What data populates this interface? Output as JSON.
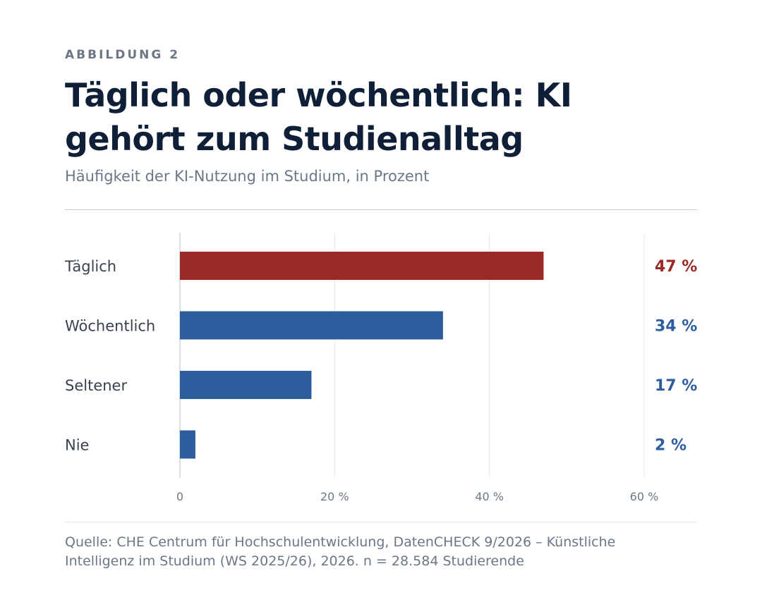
{
  "header": {
    "eyebrow": "ABBILDUNG 2",
    "title": "Täglich oder wöchentlich: KI gehört zum Studienalltag",
    "subtitle": "Häufigkeit der KI-Nutzung im Studium, in Prozent"
  },
  "footer": {
    "source": "Quelle: CHE Centrum für Hochschulentwicklung, DatenCHECK 9/2026 – Künstliche Intelligenz im Studium (WS 2025/26), 2026. n = 28.584 Studierende"
  },
  "colors": {
    "highlight": "#9b2a27",
    "bar": "#2e5d9e",
    "label": "#3a4250",
    "tick": "#6b7787",
    "grid": "#e6e8eb",
    "axis": "#b8bcc3"
  },
  "chart_data": {
    "type": "bar",
    "orientation": "horizontal",
    "categories": [
      "Täglich",
      "Wöchentlich",
      "Seltener",
      "Nie"
    ],
    "values": [
      47,
      34,
      17,
      2
    ],
    "value_labels": [
      "47 %",
      "34 %",
      "17 %",
      "2 %"
    ],
    "highlight_index": 0,
    "xlim": [
      0,
      60
    ],
    "xticks": [
      0,
      20,
      40,
      60
    ],
    "xtick_labels": [
      "0",
      "20 %",
      "40 %",
      "60 %"
    ],
    "grid": true
  }
}
